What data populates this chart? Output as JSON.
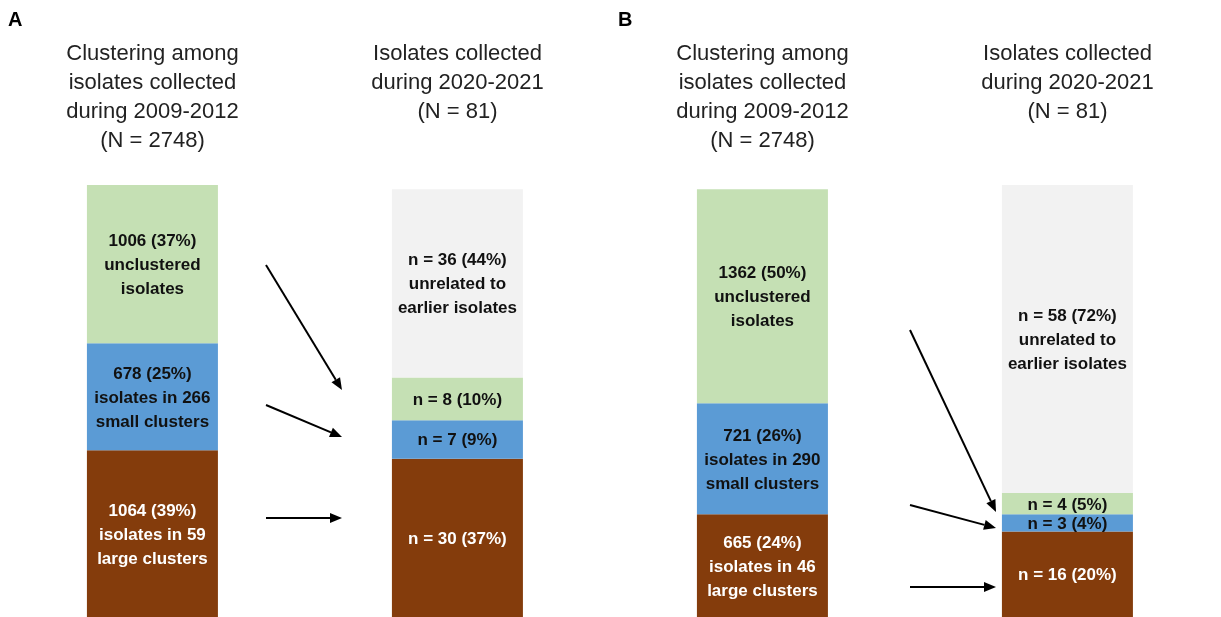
{
  "chart_data": [
    {
      "type": "bar",
      "title": "A",
      "stacked": true,
      "categories": [
        "Clustering among isolates collected during 2009-2012 (N = 2748)",
        "Isolates collected during 2020-2021 (N = 81)"
      ],
      "series": [
        {
          "color": "#843c0c",
          "values": [
            39,
            37
          ],
          "value_labels": [
            "1064 (39%) isolates in 59 large clusters",
            "n = 30 (37%)"
          ]
        },
        {
          "color": "#5b9bd5",
          "values": [
            25,
            9
          ],
          "value_labels": [
            "678 (25%) isolates in 266 small clusters",
            "n = 7 (9%)"
          ]
        },
        {
          "color": "#c5e0b4",
          "values": [
            37,
            10
          ],
          "value_labels": [
            "1006 (37%) unclustered isolates",
            "n = 8 (10%)"
          ]
        },
        {
          "color": "#f2f2f2",
          "values": [
            null,
            44
          ],
          "value_labels": [
            null,
            "n = 36 (44%) unrelated to earlier isolates"
          ]
        }
      ]
    },
    {
      "type": "bar",
      "title": "B",
      "stacked": true,
      "categories": [
        "Clustering among isolates collected during 2009-2012 (N = 2748)",
        "Isolates collected during 2020-2021 (N = 81)"
      ],
      "series": [
        {
          "color": "#843c0c",
          "values": [
            24,
            20
          ],
          "value_labels": [
            "665 (24%) isolates in 46 large clusters",
            "n = 16 (20%)"
          ]
        },
        {
          "color": "#5b9bd5",
          "values": [
            26,
            4
          ],
          "value_labels": [
            "721 (26%) isolates in 290 small clusters",
            "n = 3 (4%)"
          ]
        },
        {
          "color": "#c5e0b4",
          "values": [
            50,
            5
          ],
          "value_labels": [
            "1362 (50%) unclustered isolates",
            "n = 4 (5%)"
          ]
        },
        {
          "color": "#f2f2f2",
          "values": [
            null,
            72
          ],
          "value_labels": [
            null,
            "n = 58 (72%) unrelated to earlier isolates"
          ]
        }
      ]
    }
  ]
}
